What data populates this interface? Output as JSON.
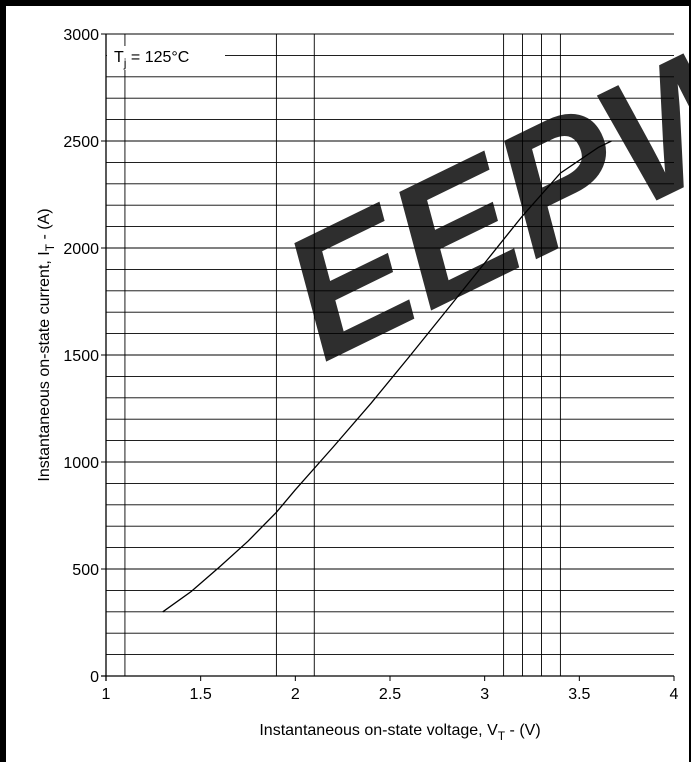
{
  "chart_data": {
    "type": "line",
    "title": "",
    "xlabel": "Instantaneous on-state voltage, V",
    "xlabel_sub": "T",
    "xlabel_unit": " - (V)",
    "ylabel": "Instantaneous on-state current, I",
    "ylabel_sub": "T",
    "ylabel_unit": " - (A)",
    "xlim": [
      1,
      4
    ],
    "ylim": [
      0,
      3000
    ],
    "x_ticks": [
      "1",
      "1.5",
      "2",
      "2.5",
      "3",
      "3.5",
      "4"
    ],
    "y_ticks": [
      "0",
      "500",
      "1000",
      "1500",
      "2000",
      "2500",
      "3000"
    ],
    "x_gridlines": [
      1.1,
      1.9,
      2.1,
      3.1,
      3.2,
      3.3,
      3.4
    ],
    "y_gridlines": [
      100,
      200,
      300,
      400,
      600,
      700,
      800,
      900,
      1100,
      1200,
      1300,
      1400,
      1600,
      1700,
      1800,
      1900,
      2100,
      2200,
      2300,
      2400,
      2600,
      2700,
      2800,
      2900
    ],
    "annotation": {
      "text_main": "T",
      "text_sub": "j",
      "text_rest": " = 125°C"
    },
    "grid": true,
    "legend": "none",
    "series": [
      {
        "x": [
          1.3,
          1.45,
          1.6,
          1.75,
          1.9,
          2.0,
          2.2,
          2.4,
          2.6,
          2.8,
          3.0,
          3.2,
          3.4,
          3.6,
          3.67
        ],
        "y": [
          300,
          395,
          510,
          630,
          765,
          870,
          1070,
          1275,
          1490,
          1710,
          1930,
          2150,
          2350,
          2470,
          2500
        ]
      }
    ]
  },
  "watermark": {
    "text": "EEPW",
    "color": "#e6393e"
  }
}
